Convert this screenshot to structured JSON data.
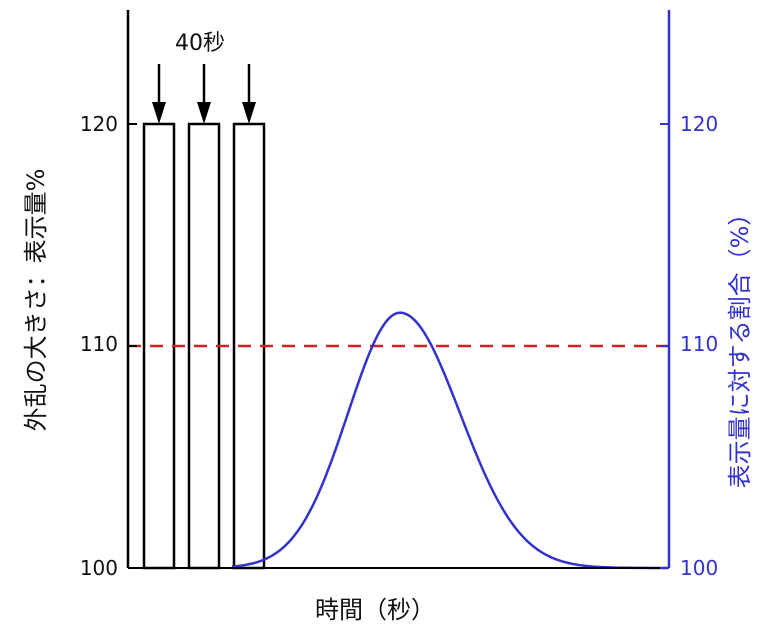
{
  "chart_data": {
    "type": "bar",
    "xlabel": "時間（秒）",
    "ylabel_left": "外乱の大きさ：表示量%",
    "ylabel_right": "表示量に対する割合（%）",
    "ylim": [
      100,
      125
    ],
    "y_ticks": [
      "100",
      "110",
      "120"
    ],
    "annotation": "40秒",
    "bars": {
      "values": [
        120,
        120,
        120
      ],
      "color": "#000000",
      "fill": "#ffffff"
    },
    "reference_line": {
      "y": 110,
      "color": "#cc2222",
      "style": "dashed"
    },
    "curve": {
      "color": "#3333cc",
      "y_axis": "right",
      "shape": "bell",
      "baseline": 100,
      "peak": 111.5
    },
    "left_axis_color": "#000000",
    "right_axis_color": "#3333cc"
  }
}
